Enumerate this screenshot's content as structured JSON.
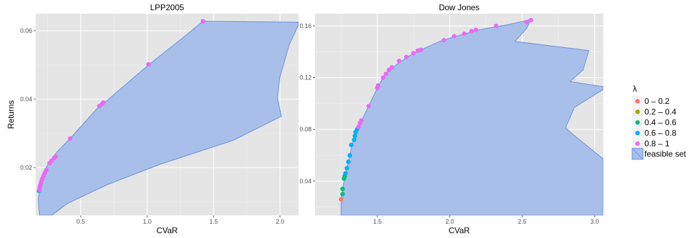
{
  "colors": {
    "panel_bg": "#e5e5e5",
    "grid_major": "#ffffff",
    "grid_minor": "#f2f2f2",
    "feasible_fill": "#a8bfe9",
    "feasible_stroke": "#6a8ee0"
  },
  "legend": {
    "title": "λ",
    "entries": [
      {
        "label": "0  –  0.2",
        "color": "#F8766D"
      },
      {
        "label": "0.2  –  0.4",
        "color": "#A3A500"
      },
      {
        "label": "0.4  –  0.6",
        "color": "#00BF7D"
      },
      {
        "label": "0.6  –  0.8",
        "color": "#00B0F6"
      },
      {
        "label": "0.8  –  1",
        "color": "#E76BF3"
      }
    ],
    "feasible_label": "feasible set"
  },
  "chart_data": [
    {
      "type": "scatter",
      "title": "LPP2005",
      "xlabel": "CVaR",
      "ylabel": "Returns",
      "xlim": [
        0.16,
        2.14
      ],
      "ylim": [
        0.006,
        0.065
      ],
      "x_ticks": [
        0.5,
        1.0,
        1.5,
        2.0
      ],
      "x_tick_labels": [
        "0.5",
        "1.0",
        "1.5",
        "2.0"
      ],
      "y_ticks": [
        0.02,
        0.04,
        0.06
      ],
      "y_tick_labels": [
        "0.02",
        "0.04",
        "0.06"
      ],
      "feasible_set": [
        [
          0.19,
          0.006
        ],
        [
          0.18,
          0.0105
        ],
        [
          0.19,
          0.014
        ],
        [
          0.21,
          0.018
        ],
        [
          0.27,
          0.022
        ],
        [
          0.32,
          0.0245
        ],
        [
          0.42,
          0.0285
        ],
        [
          0.64,
          0.038
        ],
        [
          0.68,
          0.039
        ],
        [
          1.01,
          0.05
        ],
        [
          1.27,
          0.058
        ],
        [
          1.42,
          0.0628
        ],
        [
          2.14,
          0.0625
        ],
        [
          2.14,
          0.0618
        ],
        [
          2.07,
          0.056
        ],
        [
          2.0,
          0.0465
        ],
        [
          1.98,
          0.0405
        ],
        [
          2.01,
          0.035
        ],
        [
          1.65,
          0.028
        ],
        [
          1.1,
          0.021
        ],
        [
          0.7,
          0.015
        ],
        [
          0.4,
          0.0095
        ],
        [
          0.28,
          0.006
        ]
      ],
      "points": [
        {
          "x": 0.185,
          "y": 0.0132,
          "group": 3
        },
        {
          "x": 0.19,
          "y": 0.0135,
          "group": 4
        },
        {
          "x": 0.19,
          "y": 0.0142,
          "group": 4
        },
        {
          "x": 0.195,
          "y": 0.0148,
          "group": 4
        },
        {
          "x": 0.2,
          "y": 0.0155,
          "group": 4
        },
        {
          "x": 0.205,
          "y": 0.0162,
          "group": 4
        },
        {
          "x": 0.21,
          "y": 0.0168,
          "group": 4
        },
        {
          "x": 0.22,
          "y": 0.0176,
          "group": 4
        },
        {
          "x": 0.23,
          "y": 0.0185,
          "group": 4
        },
        {
          "x": 0.24,
          "y": 0.0193,
          "group": 4
        },
        {
          "x": 0.265,
          "y": 0.0213,
          "group": 4
        },
        {
          "x": 0.28,
          "y": 0.022,
          "group": 4
        },
        {
          "x": 0.3,
          "y": 0.0228,
          "group": 4
        },
        {
          "x": 0.31,
          "y": 0.0232,
          "group": 4
        },
        {
          "x": 0.42,
          "y": 0.0285,
          "group": 4
        },
        {
          "x": 0.64,
          "y": 0.038,
          "group": 4
        },
        {
          "x": 0.66,
          "y": 0.0386,
          "group": 4
        },
        {
          "x": 0.67,
          "y": 0.039,
          "group": 4
        },
        {
          "x": 1.01,
          "y": 0.0502,
          "group": 4
        },
        {
          "x": 1.42,
          "y": 0.0628,
          "group": 4
        }
      ]
    },
    {
      "type": "scatter",
      "title": "Dow Jones",
      "xlabel": "CVaR",
      "ylabel": "",
      "xlim": [
        1.07,
        3.06
      ],
      "ylim": [
        0.0135,
        0.1695
      ],
      "x_ticks": [
        1.5,
        2.0,
        2.5,
        3.0
      ],
      "x_tick_labels": [
        "1.5",
        "2.0",
        "2.5",
        "3.0"
      ],
      "y_ticks": [
        0.04,
        0.08,
        0.12,
        0.16
      ],
      "y_tick_labels": [
        "0.04",
        "0.08",
        "0.12",
        "0.16"
      ],
      "feasible_set": [
        [
          1.25,
          0.0135
        ],
        [
          1.25,
          0.026
        ],
        [
          1.27,
          0.04
        ],
        [
          1.3,
          0.055
        ],
        [
          1.33,
          0.07
        ],
        [
          1.37,
          0.082
        ],
        [
          1.44,
          0.098
        ],
        [
          1.5,
          0.112
        ],
        [
          1.55,
          0.122
        ],
        [
          1.63,
          0.13
        ],
        [
          1.75,
          0.139
        ],
        [
          1.95,
          0.149
        ],
        [
          2.2,
          0.157
        ],
        [
          2.4,
          0.161
        ],
        [
          2.56,
          0.165
        ],
        [
          2.53,
          0.158
        ],
        [
          2.45,
          0.148
        ],
        [
          2.96,
          0.141
        ],
        [
          2.92,
          0.126
        ],
        [
          2.83,
          0.117
        ],
        [
          3.06,
          0.113
        ],
        [
          3.06,
          0.111
        ],
        [
          2.86,
          0.097
        ],
        [
          2.8,
          0.0815
        ],
        [
          2.83,
          0.078
        ],
        [
          3.06,
          0.057
        ],
        [
          3.06,
          0.0135
        ]
      ],
      "points": [
        {
          "x": 1.25,
          "y": 0.026,
          "group": 0
        },
        {
          "x": 1.26,
          "y": 0.03,
          "group": 2
        },
        {
          "x": 1.26,
          "y": 0.034,
          "group": 2
        },
        {
          "x": 1.27,
          "y": 0.042,
          "group": 2
        },
        {
          "x": 1.275,
          "y": 0.044,
          "group": 2
        },
        {
          "x": 1.28,
          "y": 0.046,
          "group": 3
        },
        {
          "x": 1.29,
          "y": 0.05,
          "group": 3
        },
        {
          "x": 1.3,
          "y": 0.055,
          "group": 3
        },
        {
          "x": 1.31,
          "y": 0.06,
          "group": 3
        },
        {
          "x": 1.32,
          "y": 0.068,
          "group": 3
        },
        {
          "x": 1.34,
          "y": 0.072,
          "group": 3
        },
        {
          "x": 1.345,
          "y": 0.075,
          "group": 3
        },
        {
          "x": 1.35,
          "y": 0.078,
          "group": 3
        },
        {
          "x": 1.36,
          "y": 0.08,
          "group": 3
        },
        {
          "x": 1.37,
          "y": 0.082,
          "group": 4
        },
        {
          "x": 1.38,
          "y": 0.085,
          "group": 4
        },
        {
          "x": 1.39,
          "y": 0.087,
          "group": 4
        },
        {
          "x": 1.44,
          "y": 0.098,
          "group": 4
        },
        {
          "x": 1.5,
          "y": 0.112,
          "group": 4
        },
        {
          "x": 1.505,
          "y": 0.114,
          "group": 4
        },
        {
          "x": 1.54,
          "y": 0.12,
          "group": 4
        },
        {
          "x": 1.56,
          "y": 0.123,
          "group": 4
        },
        {
          "x": 1.58,
          "y": 0.126,
          "group": 4
        },
        {
          "x": 1.6,
          "y": 0.128,
          "group": 4
        },
        {
          "x": 1.65,
          "y": 0.133,
          "group": 4
        },
        {
          "x": 1.7,
          "y": 0.136,
          "group": 4
        },
        {
          "x": 1.75,
          "y": 0.139,
          "group": 4
        },
        {
          "x": 1.78,
          "y": 0.141,
          "group": 4
        },
        {
          "x": 1.8,
          "y": 0.1415,
          "group": 4
        },
        {
          "x": 1.96,
          "y": 0.149,
          "group": 4
        },
        {
          "x": 2.03,
          "y": 0.152,
          "group": 4
        },
        {
          "x": 2.1,
          "y": 0.154,
          "group": 4
        },
        {
          "x": 2.15,
          "y": 0.156,
          "group": 4
        },
        {
          "x": 2.18,
          "y": 0.157,
          "group": 4
        },
        {
          "x": 2.32,
          "y": 0.16,
          "group": 4
        },
        {
          "x": 2.53,
          "y": 0.163,
          "group": 4
        },
        {
          "x": 2.56,
          "y": 0.1645,
          "group": 4
        }
      ]
    }
  ]
}
